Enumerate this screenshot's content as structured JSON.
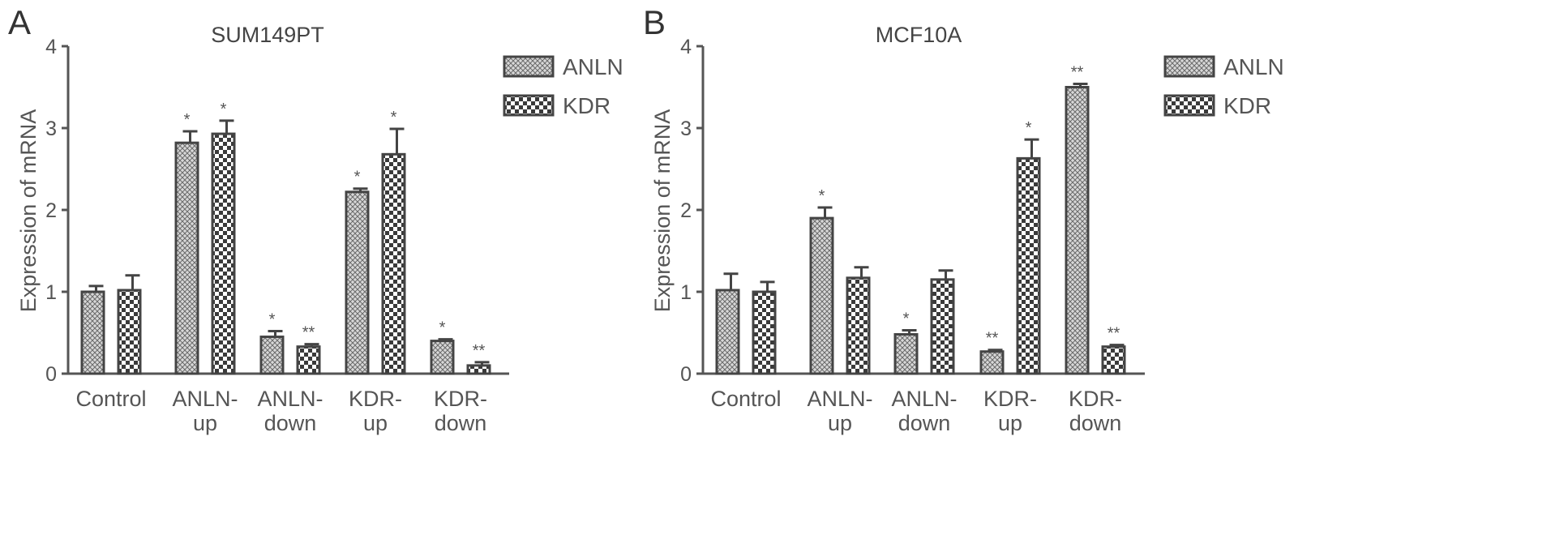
{
  "chart_data": [
    {
      "panel": "A",
      "type": "bar",
      "title": "SUM149PT",
      "ylabel": "Expression of mRNA",
      "xlabel": "",
      "ylim": [
        0,
        4
      ],
      "yticks": [
        "0",
        "1",
        "2",
        "3",
        "4"
      ],
      "categories": [
        [
          "Control"
        ],
        [
          "ANLN-",
          "up"
        ],
        [
          "ANLN-",
          "down"
        ],
        [
          "KDR-",
          "up"
        ],
        [
          "KDR-",
          "down"
        ]
      ],
      "legend": {
        "position": "top-right",
        "entries": [
          "ANLN",
          "KDR"
        ]
      },
      "series": [
        {
          "name": "ANLN",
          "values": [
            1.0,
            2.82,
            0.45,
            2.22,
            0.4
          ],
          "errors": [
            0.07,
            0.14,
            0.07,
            0.04,
            0.02
          ],
          "sig": [
            "",
            "*",
            "*",
            "*",
            "*"
          ]
        },
        {
          "name": "KDR",
          "values": [
            1.02,
            2.93,
            0.33,
            2.68,
            0.1
          ],
          "errors": [
            0.18,
            0.16,
            0.03,
            0.31,
            0.04
          ],
          "sig": [
            "",
            "*",
            "**",
            "*",
            "**"
          ]
        }
      ]
    },
    {
      "panel": "B",
      "type": "bar",
      "title": "MCF10A",
      "ylabel": "Expression of mRNA",
      "xlabel": "",
      "ylim": [
        0,
        4
      ],
      "yticks": [
        "0",
        "1",
        "2",
        "3",
        "4"
      ],
      "categories": [
        [
          "Control"
        ],
        [
          "ANLN-",
          "up"
        ],
        [
          "ANLN-",
          "down"
        ],
        [
          "KDR-",
          "up"
        ],
        [
          "KDR-",
          "down"
        ]
      ],
      "legend": {
        "position": "top-right",
        "entries": [
          "ANLN",
          "KDR"
        ]
      },
      "series": [
        {
          "name": "ANLN",
          "values": [
            1.02,
            1.9,
            0.48,
            0.27,
            3.5
          ],
          "errors": [
            0.2,
            0.13,
            0.05,
            0.02,
            0.04
          ],
          "sig": [
            "",
            "*",
            "*",
            "**",
            "**"
          ]
        },
        {
          "name": "KDR",
          "values": [
            1.0,
            1.17,
            1.15,
            2.63,
            0.33
          ],
          "errors": [
            0.12,
            0.13,
            0.11,
            0.23,
            0.02
          ],
          "sig": [
            "",
            "",
            "",
            "*",
            "**"
          ]
        }
      ]
    }
  ]
}
